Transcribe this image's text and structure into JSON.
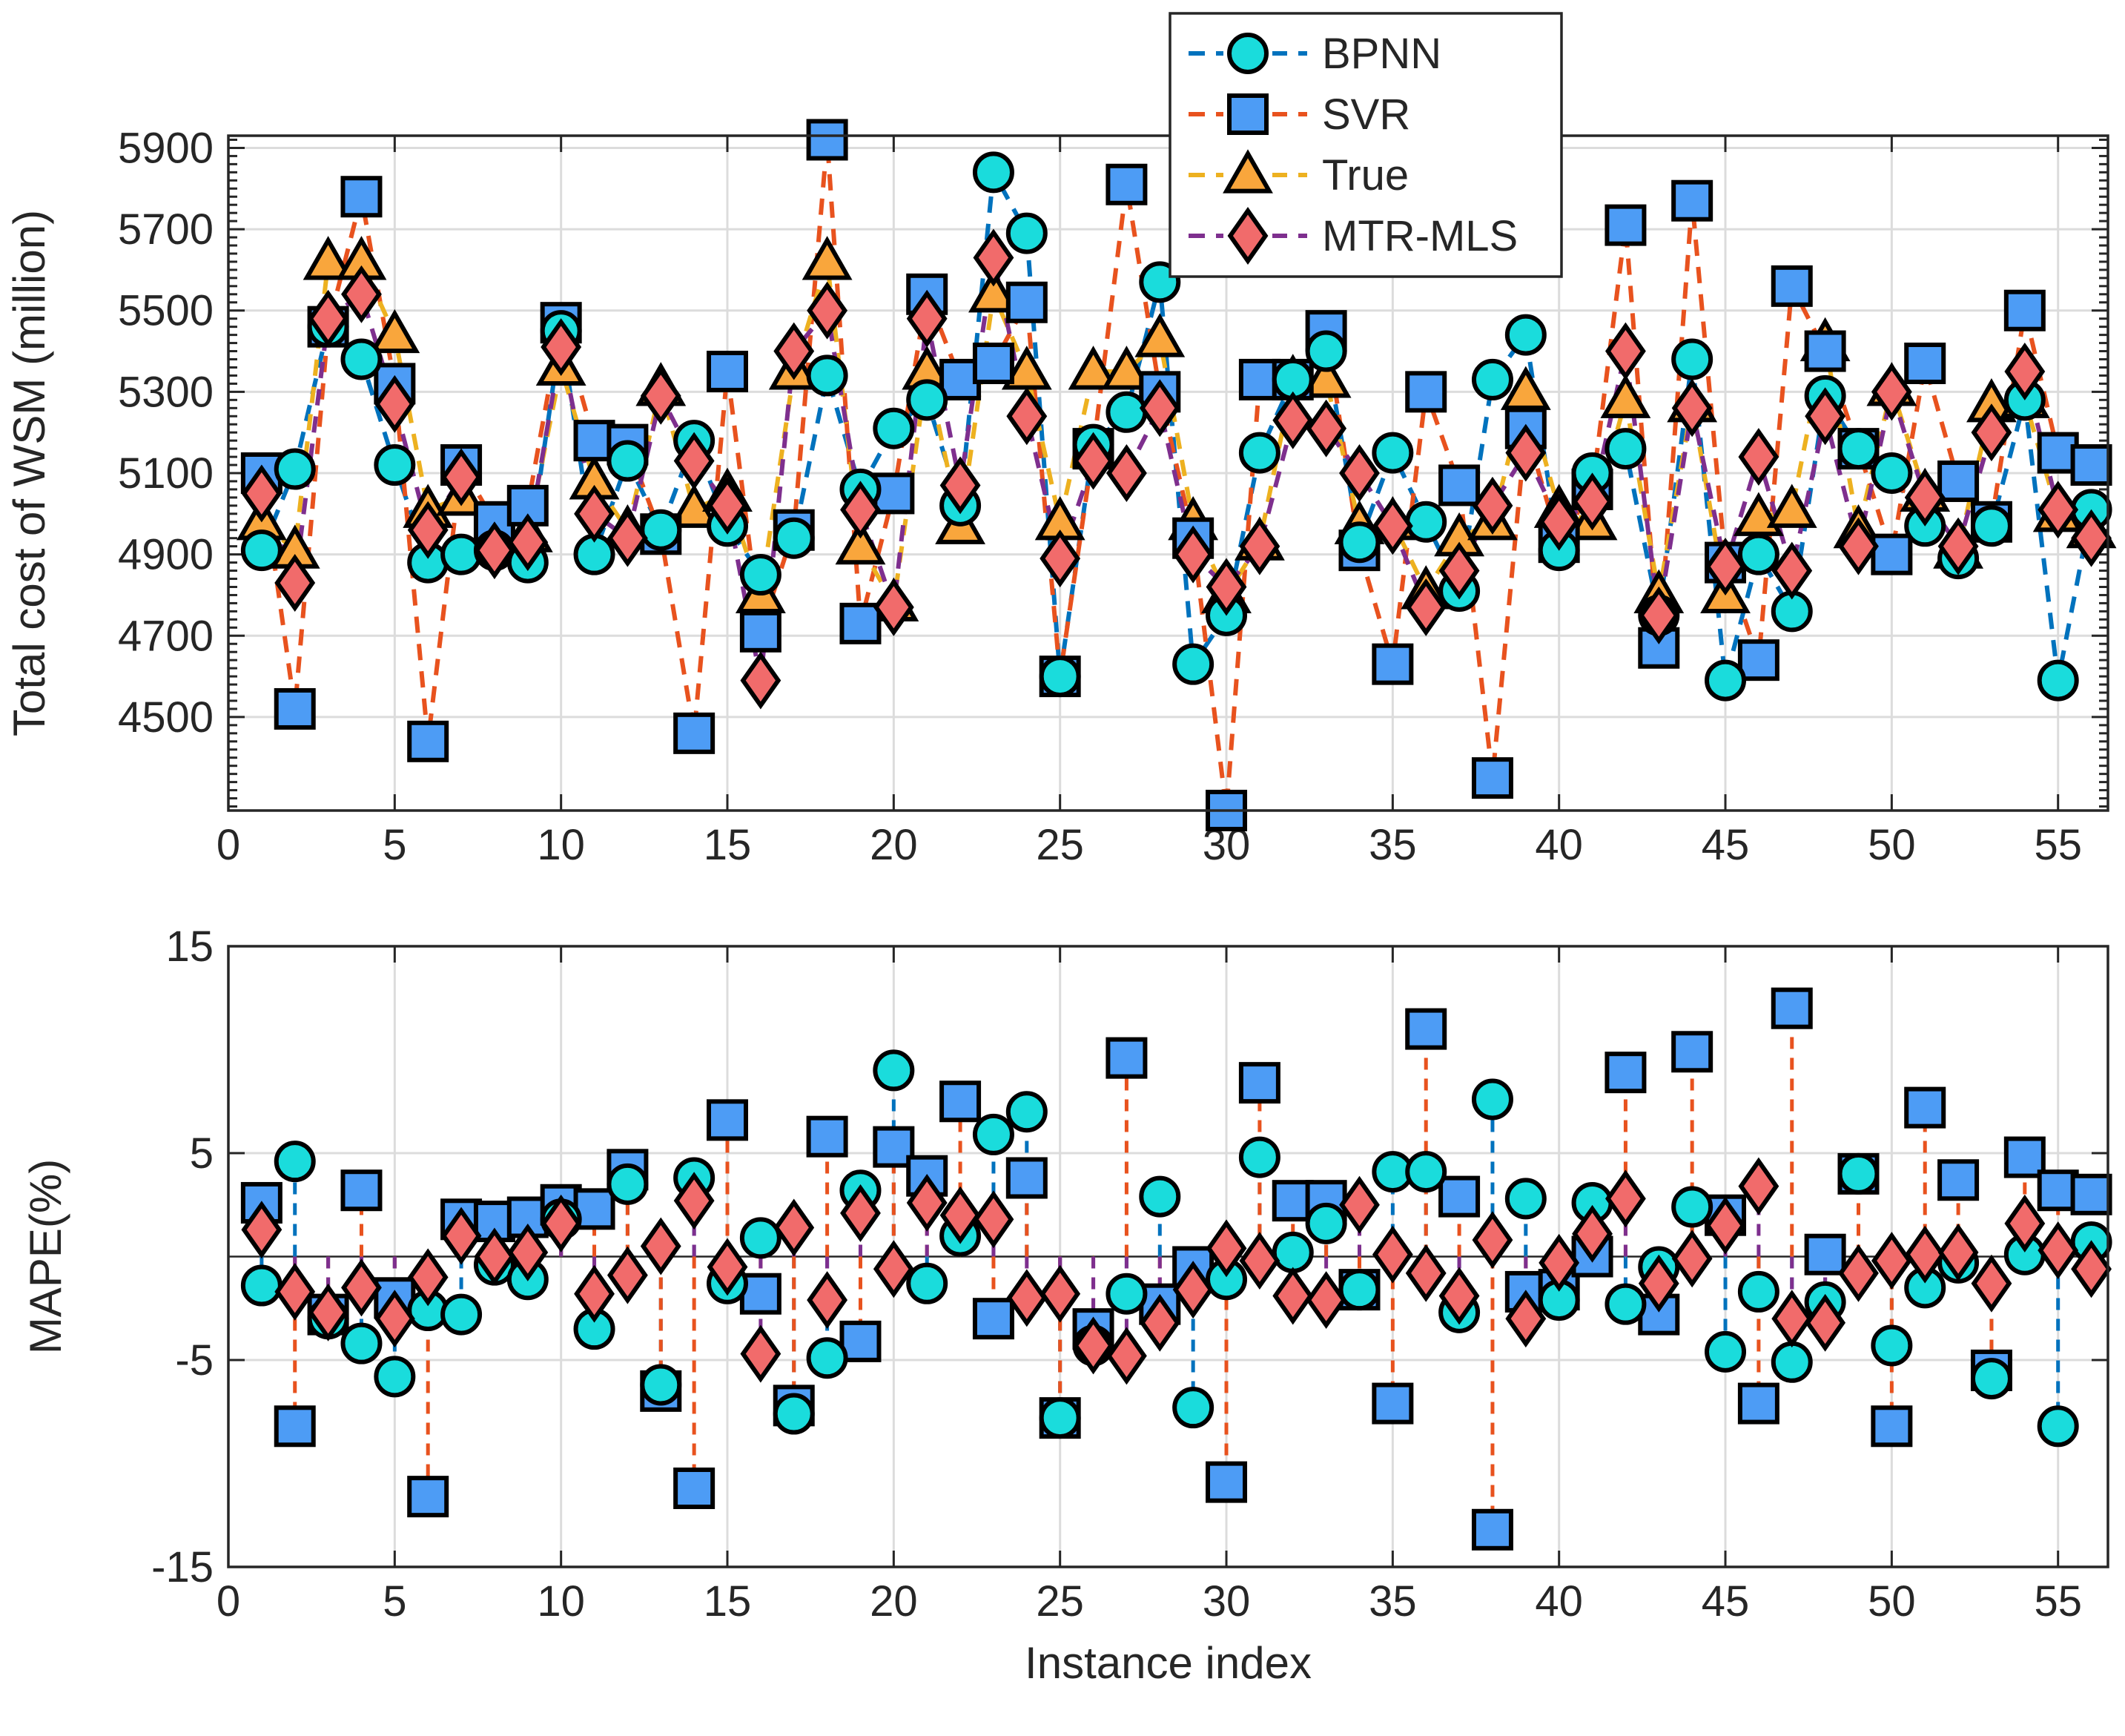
{
  "chart_data": [
    {
      "type": "line",
      "title": "",
      "xlabel": "",
      "ylabel": "Total cost of WSM (million)",
      "xlim": [
        0,
        56.5
      ],
      "ylim": [
        4270,
        5930
      ],
      "xticks": [
        0,
        5,
        10,
        15,
        20,
        25,
        30,
        35,
        40,
        45,
        50,
        55
      ],
      "yticks": [
        4500,
        4700,
        4900,
        5100,
        5300,
        5500,
        5700,
        5900
      ],
      "grid": true,
      "legend_position": "top-center",
      "x": [
        1,
        2,
        3,
        4,
        5,
        6,
        7,
        8,
        9,
        10,
        11,
        12,
        13,
        14,
        15,
        16,
        17,
        18,
        19,
        20,
        21,
        22,
        23,
        24,
        25,
        26,
        27,
        28,
        29,
        30,
        31,
        32,
        33,
        34,
        35,
        36,
        37,
        38,
        39,
        40,
        41,
        42,
        43,
        44,
        45,
        46,
        47,
        48,
        49,
        50,
        51,
        52,
        53,
        54,
        55,
        56
      ],
      "series": [
        {
          "name": "BPNN",
          "color": "#0072BD",
          "marker": "circle",
          "marker_color": "#1ADCDC",
          "values": [
            4910,
            5110,
            5460,
            5380,
            5120,
            4880,
            4900,
            4910,
            4880,
            5450,
            4900,
            5130,
            4960,
            5180,
            4970,
            4850,
            4940,
            5340,
            5060,
            5210,
            5280,
            5020,
            5840,
            5690,
            4600,
            5170,
            5250,
            5570,
            4630,
            4750,
            5150,
            5330,
            5400,
            4930,
            5150,
            4980,
            4810,
            5330,
            5440,
            4910,
            5100,
            5160,
            4750,
            5380,
            4590,
            4900,
            4760,
            5290,
            5160,
            5100,
            4970,
            4890,
            4970,
            5280,
            4590,
            5010
          ]
        },
        {
          "name": "SVR",
          "color": "#E8521E",
          "marker": "square",
          "marker_color": "#4D9CF5",
          "values": [
            5100,
            4520,
            5460,
            5780,
            5320,
            4440,
            5120,
            4980,
            5020,
            5470,
            5180,
            5170,
            4950,
            4460,
            5350,
            4710,
            4960,
            5920,
            4730,
            5050,
            5540,
            5330,
            5370,
            5520,
            4600,
            5160,
            5810,
            5300,
            4940,
            4270,
            5330,
            5330,
            5450,
            4910,
            4630,
            5300,
            5070,
            4350,
            5210,
            4930,
            5060,
            5710,
            4670,
            5770,
            4880,
            4640,
            5560,
            5400,
            5160,
            4900,
            5370,
            5080,
            4980,
            5500,
            5150,
            5120
          ]
        },
        {
          "name": "True",
          "color": "#EDB120",
          "marker": "triangle",
          "marker_color": "#F9A63C",
          "values": [
            4980,
            4910,
            5620,
            5620,
            5440,
            5010,
            5040,
            4930,
            4950,
            5360,
            5080,
            4960,
            5310,
            5010,
            5050,
            4800,
            5350,
            5620,
            4920,
            4780,
            5350,
            4970,
            5540,
            5350,
            4980,
            5350,
            5350,
            5430,
            4980,
            4800,
            4930,
            5330,
            5330,
            4970,
            4980,
            4810,
            4940,
            4980,
            5300,
            5010,
            4980,
            5280,
            4800,
            5270,
            4800,
            4990,
            5010,
            5420,
            4960,
            5310,
            5050,
            4910,
            5270,
            5280,
            5000,
            4960
          ]
        },
        {
          "name": "MTR-MLS",
          "color": "#7E2F8E",
          "marker": "diamond",
          "marker_color": "#F16B6B",
          "values": [
            5050,
            4830,
            5480,
            5540,
            5270,
            4960,
            5090,
            4910,
            4930,
            5410,
            5000,
            4940,
            5290,
            5130,
            5020,
            4590,
            5400,
            5500,
            5010,
            4770,
            5480,
            5070,
            5630,
            5240,
            4890,
            5130,
            5100,
            5260,
            4900,
            4820,
            4920,
            5230,
            5210,
            5100,
            4970,
            4770,
            4860,
            5020,
            5150,
            4980,
            5030,
            5400,
            4750,
            5260,
            4870,
            5140,
            4860,
            5240,
            4920,
            5300,
            5040,
            4920,
            5200,
            5350,
            5010,
            4940
          ]
        }
      ]
    },
    {
      "type": "line",
      "title": "",
      "xlabel": "Instance index",
      "ylabel": "MAPE(%)",
      "xlim": [
        0,
        56.5
      ],
      "ylim": [
        -15,
        15
      ],
      "xticks": [
        0,
        5,
        10,
        15,
        20,
        25,
        30,
        35,
        40,
        45,
        50,
        55
      ],
      "yticks": [
        -15,
        -5,
        5,
        15
      ],
      "grid": true,
      "x": [
        1,
        2,
        3,
        4,
        5,
        6,
        7,
        8,
        9,
        10,
        11,
        12,
        13,
        14,
        15,
        16,
        17,
        18,
        19,
        20,
        21,
        22,
        23,
        24,
        25,
        26,
        27,
        28,
        29,
        30,
        31,
        32,
        33,
        34,
        35,
        36,
        37,
        38,
        39,
        40,
        41,
        42,
        43,
        44,
        45,
        46,
        47,
        48,
        49,
        50,
        51,
        52,
        53,
        54,
        55,
        56
      ],
      "series": [
        {
          "name": "BPNN",
          "color": "#0072BD",
          "marker": "circle",
          "marker_color": "#1ADCDC",
          "values": [
            -1.4,
            4.6,
            -3.0,
            -4.2,
            -5.8,
            -2.6,
            -2.8,
            -0.4,
            -1.1,
            1.8,
            -3.5,
            3.5,
            -6.2,
            3.8,
            -1.3,
            0.9,
            -7.6,
            -4.9,
            3.2,
            9.0,
            -1.3,
            1.0,
            5.9,
            7.0,
            -7.8,
            -4.3,
            -1.8,
            2.9,
            -7.3,
            -1.1,
            4.8,
            0.2,
            1.6,
            -1.6,
            4.1,
            4.1,
            -2.7,
            7.6,
            2.8,
            -2.1,
            2.6,
            -2.3,
            -0.5,
            2.4,
            -4.6,
            -1.7,
            -5.1,
            -2.2,
            4.0,
            -4.3,
            -1.5,
            -0.3,
            -5.9,
            0.1,
            -8.2,
            0.7
          ]
        },
        {
          "name": "SVR",
          "color": "#E8521E",
          "marker": "square",
          "marker_color": "#4D9CF5",
          "values": [
            2.6,
            -8.2,
            -2.8,
            3.2,
            -2.0,
            -11.6,
            1.8,
            1.7,
            1.9,
            2.5,
            2.3,
            4.2,
            -6.5,
            -11.2,
            6.6,
            -1.8,
            -7.2,
            5.8,
            -4.1,
            5.3,
            3.9,
            7.5,
            -3.0,
            3.8,
            -7.8,
            -3.5,
            9.6,
            -2.3,
            -0.5,
            -10.9,
            8.4,
            2.7,
            2.7,
            -1.6,
            -7.1,
            11.0,
            2.9,
            -13.2,
            -1.7,
            -1.6,
            0.0,
            8.9,
            -2.8,
            9.9,
            2.0,
            -7.1,
            12.0,
            0.1,
            4.0,
            -8.2,
            7.2,
            3.7,
            -5.5,
            4.8,
            3.2,
            3.0
          ]
        },
        {
          "name": "True",
          "color": "#EDB120",
          "marker": "triangle",
          "marker_color": "#F9A63C",
          "values": [
            0,
            0,
            0,
            0,
            0,
            0,
            0,
            0,
            0,
            0,
            0,
            0,
            0,
            0,
            0,
            0,
            0,
            0,
            0,
            0,
            0,
            0,
            0,
            0,
            0,
            0,
            0,
            0,
            0,
            0,
            0,
            0,
            0,
            0,
            0,
            0,
            0,
            0,
            0,
            0,
            0,
            0,
            0,
            0,
            0,
            0,
            0,
            0,
            0,
            0,
            0,
            0,
            0,
            0,
            0,
            0
          ]
        },
        {
          "name": "MTR-MLS",
          "color": "#7E2F8E",
          "marker": "diamond",
          "marker_color": "#F16B6B",
          "values": [
            1.3,
            -1.7,
            -2.7,
            -1.5,
            -3.0,
            -1.0,
            1.0,
            0.0,
            0.2,
            1.6,
            -1.8,
            -0.9,
            0.5,
            2.7,
            -0.5,
            -4.7,
            1.4,
            -2.1,
            2.1,
            -0.6,
            2.6,
            2.0,
            1.8,
            -2.0,
            -1.8,
            -4.3,
            -4.8,
            -3.2,
            -1.6,
            0.4,
            -0.2,
            -1.9,
            -2.1,
            2.5,
            0.1,
            -0.8,
            -1.9,
            0.8,
            -3.0,
            -0.3,
            1.1,
            2.8,
            -1.3,
            -0.1,
            1.5,
            3.4,
            -3.0,
            -3.2,
            -0.8,
            -0.2,
            0.1,
            0.2,
            -1.3,
            1.6,
            0.3,
            -0.6
          ]
        }
      ]
    }
  ]
}
